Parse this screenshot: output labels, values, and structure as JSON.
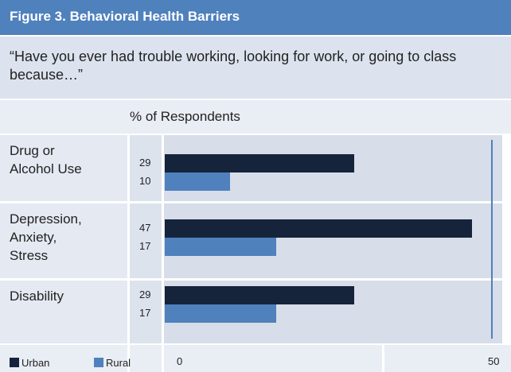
{
  "chart_data": {
    "type": "bar",
    "title": "Figure 3. Behavioral Health Barriers",
    "subtitle": "“Have you ever had trouble working, looking for work, or going to class because…”",
    "axis_label": "% of Respondents",
    "categories": [
      "Drug or Alcohol Use",
      "Depression, Anxiety, Stress",
      "Disability"
    ],
    "series": [
      {
        "name": "Urban",
        "color": "#15243b",
        "values": [
          29,
          47,
          29
        ]
      },
      {
        "name": "Rural",
        "color": "#4f81bd",
        "values": [
          10,
          17,
          17
        ]
      }
    ],
    "xlim": [
      0,
      50
    ],
    "xticks": [
      0,
      50
    ],
    "orientation": "horizontal"
  }
}
